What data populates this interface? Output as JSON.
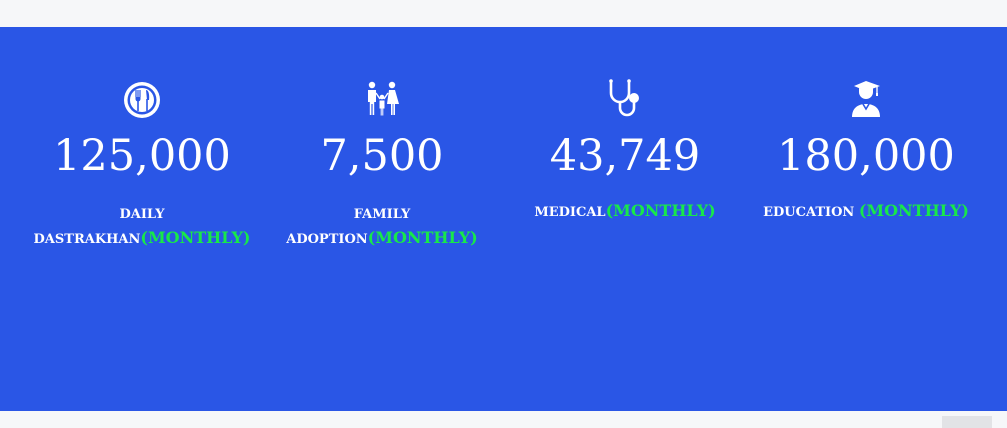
{
  "stats": [
    {
      "icon": "plate-cutlery-icon",
      "number": "125,000",
      "label_line1": "DAILY",
      "label_line2": "DASTRAKHAN",
      "suffix": "(MONTHLY)"
    },
    {
      "icon": "family-icon",
      "number": "7,500",
      "label_line1": "FAMILY",
      "label_line2": "ADOPTION",
      "suffix": "(MONTHLY)"
    },
    {
      "icon": "stethoscope-icon",
      "number": "43,749",
      "label_line1": "MEDICAL",
      "suffix": "(MONTHLY)"
    },
    {
      "icon": "graduate-icon",
      "number": "180,000",
      "label_line1": "EDUCATION ",
      "suffix": "(MONTHLY)"
    }
  ],
  "colors": {
    "band_background": "#2a56e6",
    "accent_green": "#18e84a",
    "text": "#ffffff",
    "page_background": "#f6f7f9"
  }
}
